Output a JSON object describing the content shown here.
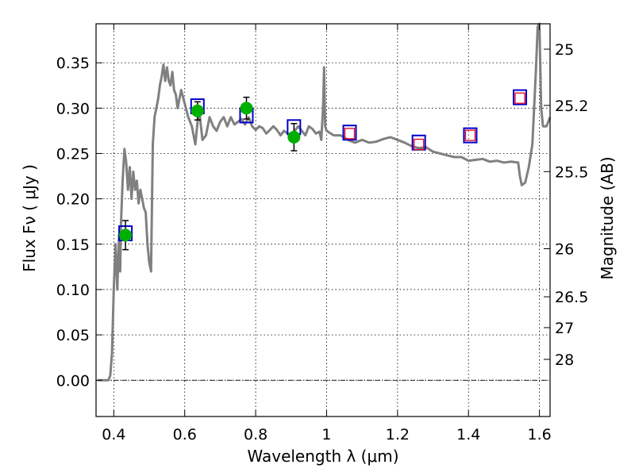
{
  "chart_data": {
    "type": "scatter",
    "xlabel": "Wavelength  λ (μm)",
    "ylabel": "Flux  Fν  ( μJy )",
    "y2label": "Magnitude (AB)",
    "xlim": [
      0.35,
      1.63
    ],
    "ylim": [
      -0.04,
      0.393
    ],
    "grid": true,
    "x_ticks": [
      0.4,
      0.6,
      0.8,
      1.0,
      1.2,
      1.4,
      1.6
    ],
    "x_tick_labels": [
      "0.4",
      "0.6",
      "0.8",
      "1",
      "1.2",
      "1.4",
      "1.6"
    ],
    "y_ticks": [
      0.0,
      0.05,
      0.1,
      0.15,
      0.2,
      0.25,
      0.3,
      0.35
    ],
    "y_tick_labels": [
      "0.00",
      "0.05",
      "0.10",
      "0.15",
      "0.20",
      "0.25",
      "0.30",
      "0.35"
    ],
    "magnitude_ticks": [
      {
        "label": "25",
        "flux": 0.365
      },
      {
        "label": "25.2",
        "flux": 0.303
      },
      {
        "label": "25.5",
        "flux": 0.23
      },
      {
        "label": "26",
        "flux": 0.145
      },
      {
        "label": "26.5",
        "flux": 0.092
      },
      {
        "label": "27",
        "flux": 0.058
      },
      {
        "label": "28",
        "flux": 0.023
      }
    ],
    "series": [
      {
        "kind": "model_sed",
        "color": "#808080",
        "x": [
          0.355,
          0.385,
          0.39,
          0.395,
          0.4,
          0.405,
          0.41,
          0.415,
          0.418,
          0.42,
          0.425,
          0.43,
          0.435,
          0.44,
          0.445,
          0.45,
          0.455,
          0.46,
          0.465,
          0.47,
          0.475,
          0.48,
          0.485,
          0.49,
          0.495,
          0.5,
          0.505,
          0.51,
          0.515,
          0.52,
          0.525,
          0.53,
          0.535,
          0.54,
          0.545,
          0.55,
          0.555,
          0.56,
          0.565,
          0.57,
          0.575,
          0.58,
          0.585,
          0.59,
          0.6,
          0.61,
          0.62,
          0.63,
          0.64,
          0.65,
          0.66,
          0.67,
          0.68,
          0.69,
          0.7,
          0.71,
          0.72,
          0.73,
          0.74,
          0.75,
          0.76,
          0.77,
          0.78,
          0.79,
          0.8,
          0.81,
          0.82,
          0.83,
          0.84,
          0.85,
          0.86,
          0.87,
          0.88,
          0.89,
          0.9,
          0.91,
          0.92,
          0.93,
          0.94,
          0.95,
          0.96,
          0.97,
          0.98,
          0.985,
          0.99,
          0.993,
          0.996,
          1.0,
          1.02,
          1.04,
          1.06,
          1.08,
          1.1,
          1.12,
          1.14,
          1.16,
          1.18,
          1.2,
          1.22,
          1.24,
          1.26,
          1.28,
          1.3,
          1.32,
          1.34,
          1.36,
          1.38,
          1.4,
          1.42,
          1.44,
          1.46,
          1.48,
          1.5,
          1.52,
          1.54,
          1.545,
          1.55,
          1.56,
          1.57,
          1.58,
          1.585,
          1.59,
          1.595,
          1.6,
          1.605,
          1.61,
          1.62,
          1.63
        ],
        "y": [
          0.0,
          0.0,
          0.005,
          0.03,
          0.1,
          0.15,
          0.1,
          0.16,
          0.12,
          0.17,
          0.22,
          0.255,
          0.24,
          0.21,
          0.235,
          0.2,
          0.23,
          0.21,
          0.22,
          0.195,
          0.21,
          0.2,
          0.19,
          0.185,
          0.15,
          0.13,
          0.12,
          0.26,
          0.29,
          0.3,
          0.31,
          0.325,
          0.335,
          0.348,
          0.33,
          0.345,
          0.33,
          0.325,
          0.34,
          0.32,
          0.315,
          0.3,
          0.31,
          0.32,
          0.305,
          0.29,
          0.28,
          0.26,
          0.3,
          0.265,
          0.27,
          0.29,
          0.28,
          0.275,
          0.285,
          0.29,
          0.28,
          0.29,
          0.282,
          0.285,
          0.288,
          0.282,
          0.29,
          0.28,
          0.276,
          0.28,
          0.278,
          0.272,
          0.276,
          0.28,
          0.276,
          0.27,
          0.275,
          0.272,
          0.27,
          0.275,
          0.28,
          0.275,
          0.27,
          0.28,
          0.277,
          0.272,
          0.274,
          0.265,
          0.3,
          0.345,
          0.28,
          0.275,
          0.27,
          0.27,
          0.265,
          0.262,
          0.265,
          0.262,
          0.263,
          0.266,
          0.268,
          0.265,
          0.262,
          0.258,
          0.256,
          0.257,
          0.252,
          0.25,
          0.248,
          0.246,
          0.246,
          0.242,
          0.243,
          0.244,
          0.241,
          0.242,
          0.24,
          0.241,
          0.24,
          0.225,
          0.215,
          0.218,
          0.235,
          0.26,
          0.3,
          0.34,
          0.39,
          0.393,
          0.3,
          0.28,
          0.28,
          0.29
        ]
      },
      {
        "kind": "observed_photometry",
        "color": "#00b000",
        "x": [
          0.433,
          0.636,
          0.774,
          0.908
        ],
        "y": [
          0.16,
          0.297,
          0.3,
          0.268
        ],
        "yerr": [
          0.016,
          0.01,
          0.012,
          0.015
        ]
      },
      {
        "kind": "model_photometry_open",
        "color": "#0000cc",
        "x": [
          0.433,
          0.636,
          0.774,
          0.908,
          1.065,
          1.26,
          1.405,
          1.545
        ],
        "y": [
          0.162,
          0.302,
          0.292,
          0.279,
          0.273,
          0.262,
          0.27,
          0.312
        ]
      },
      {
        "kind": "predicted_nir",
        "color": "#e8102a",
        "x": [
          1.065,
          1.26,
          1.405,
          1.545
        ],
        "y": [
          0.272,
          0.26,
          0.27,
          0.311
        ]
      }
    ]
  }
}
